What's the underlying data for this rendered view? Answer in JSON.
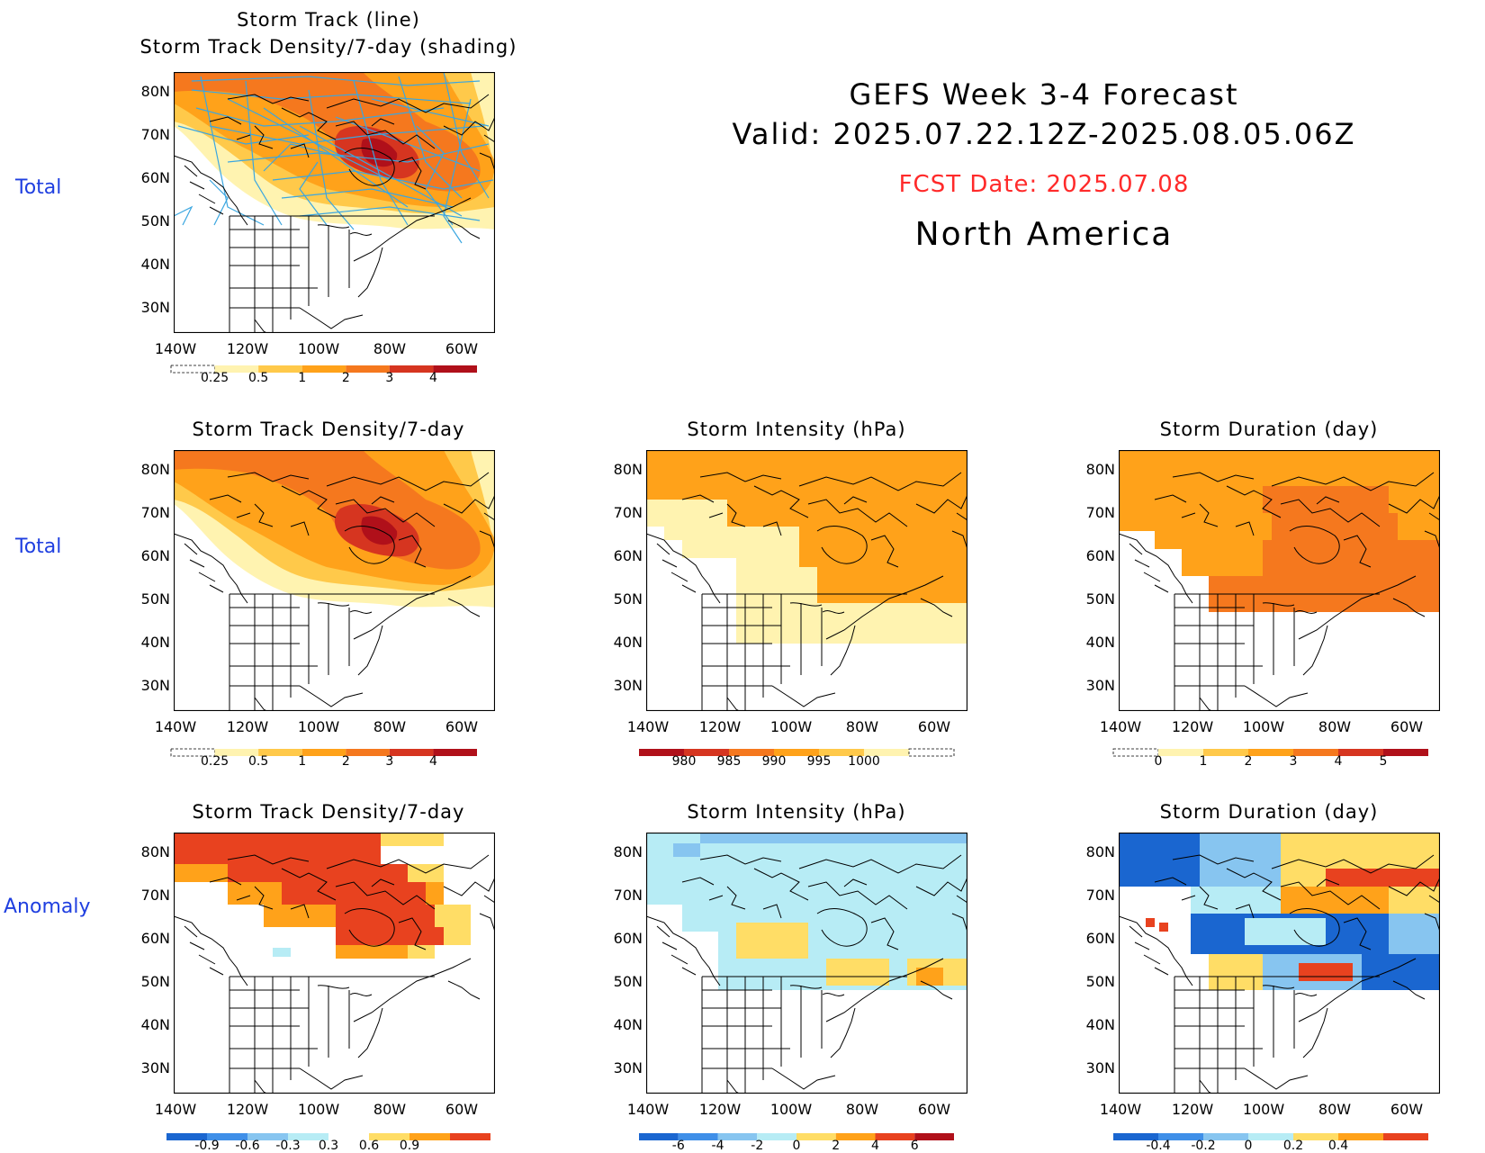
{
  "header": {
    "title_line1": "GEFS Week 3-4 Forecast",
    "title_line2": "Valid: 2025.07.22.12Z-2025.08.05.06Z",
    "fcst_date": "FCST Date: 2025.07.08",
    "region": "North America"
  },
  "row_labels": {
    "row1": "Total",
    "row2": "Total",
    "row3": "Anomaly"
  },
  "axes": {
    "lat_ticks": [
      "80N",
      "70N",
      "60N",
      "50N",
      "40N",
      "30N"
    ],
    "lon_ticks": [
      "140W",
      "120W",
      "100W",
      "80W",
      "60W"
    ]
  },
  "panels": {
    "storm_track": {
      "title_line1": "Storm Track (line)",
      "title_line2": "Storm Track Density/7-day (shading)",
      "colorbar_labels": [
        "0.25",
        "0.5",
        "1",
        "2",
        "3",
        "4"
      ]
    },
    "density_total": {
      "title": "Storm Track Density/7-day",
      "colorbar_labels": [
        "0.25",
        "0.5",
        "1",
        "2",
        "3",
        "4"
      ]
    },
    "intensity_total": {
      "title": "Storm Intensity (hPa)",
      "colorbar_labels": [
        "980",
        "985",
        "990",
        "995",
        "1000"
      ]
    },
    "duration_total": {
      "title": "Storm Duration (day)",
      "colorbar_labels": [
        "0",
        "1",
        "2",
        "3",
        "4",
        "5"
      ]
    },
    "density_anom": {
      "title": "Storm Track Density/7-day",
      "colorbar_labels": [
        "-0.9",
        "-0.6",
        "-0.3",
        "0.3",
        "0.6",
        "0.9"
      ]
    },
    "intensity_anom": {
      "title": "Storm Intensity (hPa)",
      "colorbar_labels": [
        "-6",
        "-4",
        "-2",
        "0",
        "2",
        "4",
        "6"
      ]
    },
    "duration_anom": {
      "title": "Storm Duration (day)",
      "colorbar_labels": [
        "-0.4",
        "-0.2",
        "0",
        "0.2",
        "0.4"
      ]
    }
  },
  "colors": {
    "title_red": "#ff2a2a",
    "row_label_blue": "#1f3fe0",
    "track_line": "#3aa6e0"
  }
}
